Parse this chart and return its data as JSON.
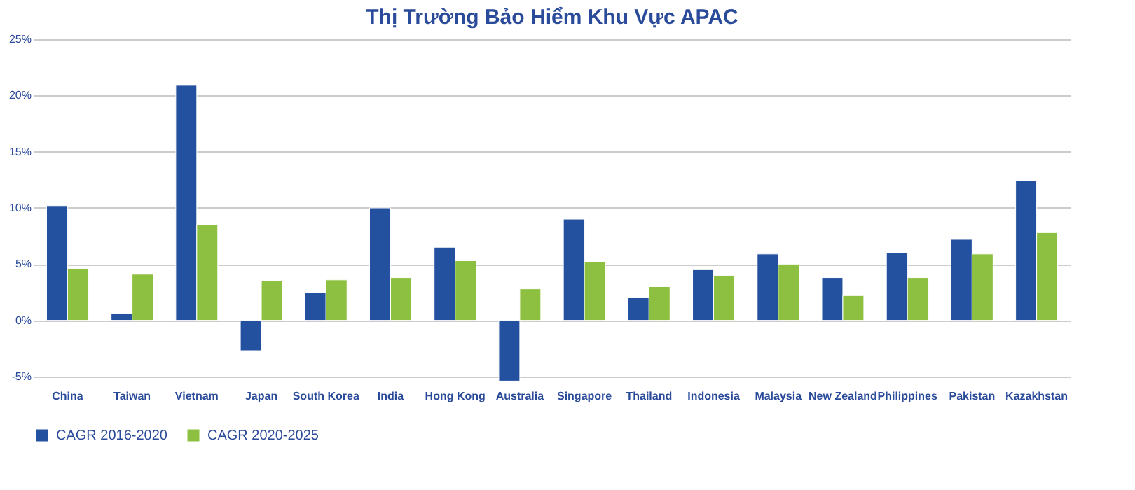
{
  "chart_data": {
    "type": "bar",
    "title": "Thị Trường Bảo Hiểm Khu Vực APAC",
    "categories": [
      "China",
      "Taiwan",
      "Vietnam",
      "Japan",
      "South Korea",
      "India",
      "Hong Kong",
      "Australia",
      "Singapore",
      "Thailand",
      "Indonesia",
      "Malaysia",
      "New Zealand",
      "Philippines",
      "Pakistan",
      "Kazakhstan"
    ],
    "series": [
      {
        "name": "CAGR 2016-2020",
        "color": "#2450a0",
        "values": [
          10.2,
          0.6,
          20.9,
          -2.7,
          2.5,
          10.0,
          6.5,
          -5.4,
          9.0,
          2.0,
          4.5,
          5.9,
          3.8,
          6.0,
          7.2,
          12.4
        ]
      },
      {
        "name": "CAGR 2020-2025",
        "color": "#8dc040",
        "values": [
          4.6,
          4.1,
          8.5,
          3.5,
          3.6,
          3.8,
          5.3,
          2.8,
          5.2,
          3.0,
          4.0,
          5.0,
          2.2,
          3.8,
          5.9,
          7.8
        ]
      }
    ],
    "ylim": [
      -5.5,
      25
    ],
    "yticks": [
      {
        "value": -5,
        "label": "-5%"
      },
      {
        "value": 0,
        "label": "0%"
      },
      {
        "value": 5,
        "label": "5%"
      },
      {
        "value": 10,
        "label": "10%"
      },
      {
        "value": 15,
        "label": "15%"
      },
      {
        "value": 20,
        "label": "20%"
      },
      {
        "value": 25,
        "label": "25%"
      }
    ],
    "grid": "y",
    "legend": "bottom"
  }
}
